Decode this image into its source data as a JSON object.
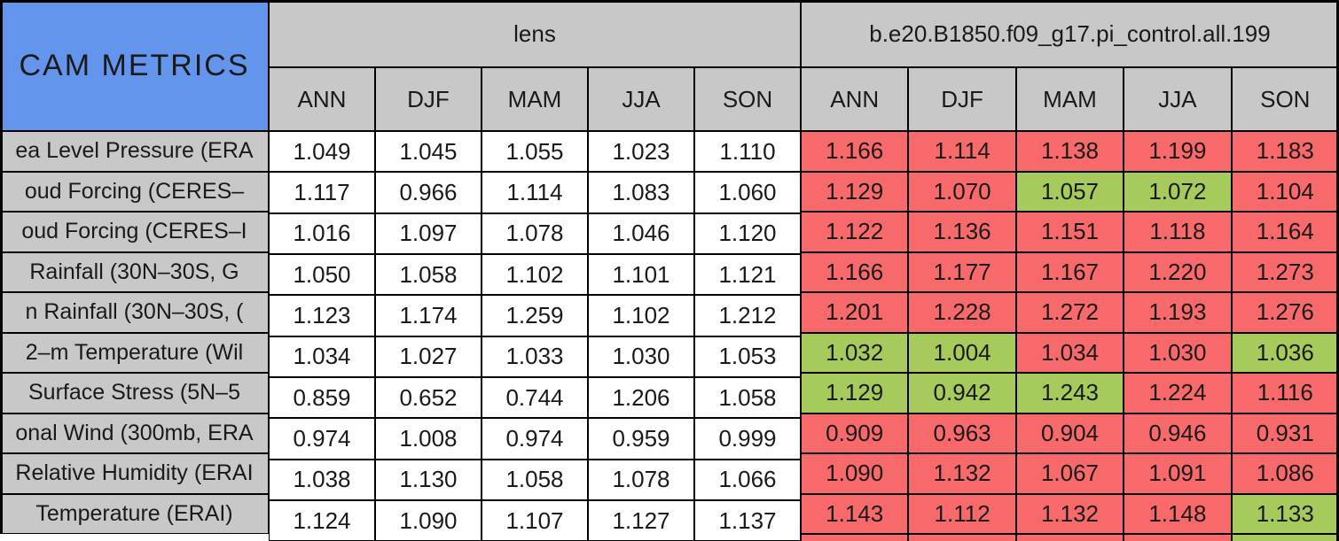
{
  "chart_data": {
    "type": "table",
    "title": "CAM METRICS",
    "column_groups": [
      {
        "label": "lens",
        "seasons": [
          "ANN",
          "DJF",
          "MAM",
          "JJA",
          "SON"
        ]
      },
      {
        "label": "b.e20.B1850.f09_g17.pi_control.all.199",
        "seasons": [
          "ANN",
          "DJF",
          "MAM",
          "JJA",
          "SON"
        ]
      }
    ],
    "rows": [
      {
        "label": "ea Level Pressure (ERA",
        "lens": [
          "1.049",
          "1.045",
          "1.055",
          "1.023",
          "1.110"
        ],
        "run": [
          {
            "value": "1.166",
            "color": "red"
          },
          {
            "value": "1.114",
            "color": "red"
          },
          {
            "value": "1.138",
            "color": "red"
          },
          {
            "value": "1.199",
            "color": "red"
          },
          {
            "value": "1.183",
            "color": "red"
          }
        ]
      },
      {
        "label": "oud Forcing (CERES–",
        "lens": [
          "1.117",
          "0.966",
          "1.114",
          "1.083",
          "1.060"
        ],
        "run": [
          {
            "value": "1.129",
            "color": "red"
          },
          {
            "value": "1.070",
            "color": "red"
          },
          {
            "value": "1.057",
            "color": "green"
          },
          {
            "value": "1.072",
            "color": "green"
          },
          {
            "value": "1.104",
            "color": "red"
          }
        ]
      },
      {
        "label": "oud Forcing (CERES–I",
        "lens": [
          "1.016",
          "1.097",
          "1.078",
          "1.046",
          "1.120"
        ],
        "run": [
          {
            "value": "1.122",
            "color": "red"
          },
          {
            "value": "1.136",
            "color": "red"
          },
          {
            "value": "1.151",
            "color": "red"
          },
          {
            "value": "1.118",
            "color": "red"
          },
          {
            "value": "1.164",
            "color": "red"
          }
        ]
      },
      {
        "label": "Rainfall (30N–30S, G",
        "lens": [
          "1.050",
          "1.058",
          "1.102",
          "1.101",
          "1.121"
        ],
        "run": [
          {
            "value": "1.166",
            "color": "red"
          },
          {
            "value": "1.177",
            "color": "red"
          },
          {
            "value": "1.167",
            "color": "red"
          },
          {
            "value": "1.220",
            "color": "red"
          },
          {
            "value": "1.273",
            "color": "red"
          }
        ]
      },
      {
        "label": "n Rainfall (30N–30S, (",
        "lens": [
          "1.123",
          "1.174",
          "1.259",
          "1.102",
          "1.212"
        ],
        "run": [
          {
            "value": "1.201",
            "color": "red"
          },
          {
            "value": "1.228",
            "color": "red"
          },
          {
            "value": "1.272",
            "color": "red"
          },
          {
            "value": "1.193",
            "color": "red"
          },
          {
            "value": "1.276",
            "color": "red"
          }
        ]
      },
      {
        "label": "2–m Temperature (Wil",
        "lens": [
          "1.034",
          "1.027",
          "1.033",
          "1.030",
          "1.053"
        ],
        "run": [
          {
            "value": "1.032",
            "color": "green"
          },
          {
            "value": "1.004",
            "color": "green"
          },
          {
            "value": "1.034",
            "color": "red"
          },
          {
            "value": "1.030",
            "color": "red"
          },
          {
            "value": "1.036",
            "color": "green"
          }
        ]
      },
      {
        "label": "Surface Stress (5N–5",
        "lens": [
          "0.859",
          "0.652",
          "0.744",
          "1.206",
          "1.058"
        ],
        "run": [
          {
            "value": "1.129",
            "color": "green"
          },
          {
            "value": "0.942",
            "color": "green"
          },
          {
            "value": "1.243",
            "color": "green"
          },
          {
            "value": "1.224",
            "color": "red"
          },
          {
            "value": "1.116",
            "color": "red"
          }
        ]
      },
      {
        "label": "onal Wind (300mb, ERA",
        "lens": [
          "0.974",
          "1.008",
          "0.974",
          "0.959",
          "0.999"
        ],
        "run": [
          {
            "value": "0.909",
            "color": "red"
          },
          {
            "value": "0.963",
            "color": "red"
          },
          {
            "value": "0.904",
            "color": "red"
          },
          {
            "value": "0.946",
            "color": "red"
          },
          {
            "value": "0.931",
            "color": "red"
          }
        ]
      },
      {
        "label": "Relative Humidity (ERAI",
        "lens": [
          "1.038",
          "1.130",
          "1.058",
          "1.078",
          "1.066"
        ],
        "run": [
          {
            "value": "1.090",
            "color": "red"
          },
          {
            "value": "1.132",
            "color": "red"
          },
          {
            "value": "1.067",
            "color": "red"
          },
          {
            "value": "1.091",
            "color": "red"
          },
          {
            "value": "1.086",
            "color": "red"
          }
        ]
      },
      {
        "label": "Temperature (ERAI)",
        "lens": [
          "1.124",
          "1.090",
          "1.107",
          "1.127",
          "1.137"
        ],
        "run": [
          {
            "value": "1.143",
            "color": "red"
          },
          {
            "value": "1.112",
            "color": "red"
          },
          {
            "value": "1.132",
            "color": "red"
          },
          {
            "value": "1.148",
            "color": "red"
          },
          {
            "value": "1.133",
            "color": "green"
          }
        ]
      }
    ],
    "cutoff_row_colors": [
      "red",
      "red",
      "red",
      "red",
      "green"
    ]
  },
  "colors": {
    "blue": "#6495ED",
    "gray": "#C8C8C8",
    "red": "#F8696B",
    "green": "#A6CB5C",
    "border": "#000000"
  }
}
